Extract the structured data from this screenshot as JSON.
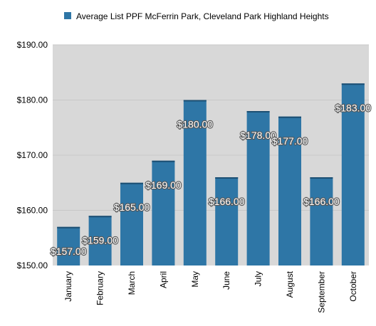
{
  "chart_data": {
    "type": "bar",
    "title": "",
    "xlabel": "",
    "ylabel": "",
    "legend_position": "top",
    "grid": true,
    "ylim": [
      150,
      190
    ],
    "yticks": [
      "$150.00",
      "$160.00",
      "$170.00",
      "$180.00",
      "$190.00"
    ],
    "ytick_values": [
      150,
      160,
      170,
      180,
      190
    ],
    "categories": [
      "January",
      "February",
      "March",
      "April",
      "May",
      "June",
      "July",
      "August",
      "September",
      "October"
    ],
    "series": [
      {
        "name": "Average List PPF McFerrin Park, Cleveland Park Highland Heights",
        "color": "#2e76a6",
        "values": [
          157,
          159,
          165,
          169,
          180,
          166,
          178,
          177,
          166,
          183
        ],
        "labels": [
          "$157.00",
          "$159.00",
          "$165.00",
          "$169.00",
          "$180.00",
          "$166.00",
          "$178.00",
          "$177.00",
          "$166.00",
          "$183.00"
        ]
      }
    ],
    "plot_background": "#d8d8d8",
    "grid_color": "#c8c8c8"
  }
}
